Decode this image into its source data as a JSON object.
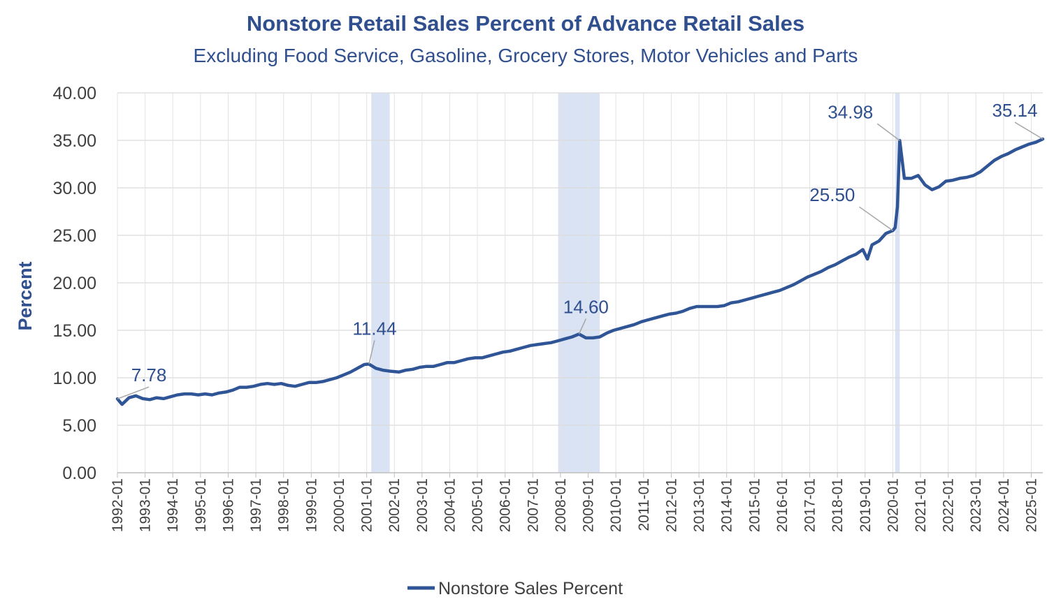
{
  "chart_data": {
    "type": "line",
    "title": "Nonstore Retail Sales Percent of Advance Retail Sales",
    "subtitle": "Excluding Food Service, Gasoline, Grocery Stores, Motor Vehicles and Parts",
    "xlabel": "",
    "ylabel": "Percent",
    "ylim": [
      0,
      40
    ],
    "yticks": [
      "0.00",
      "5.00",
      "10.00",
      "15.00",
      "20.00",
      "25.00",
      "30.00",
      "35.00",
      "40.00"
    ],
    "xticks": [
      "1992-01",
      "1993-01",
      "1994-01",
      "1995-01",
      "1996-01",
      "1997-01",
      "1998-01",
      "1999-01",
      "2000-01",
      "2001-01",
      "2002-01",
      "2003-01",
      "2004-01",
      "2005-01",
      "2006-01",
      "2007-01",
      "2008-01",
      "2009-01",
      "2010-01",
      "2011-01",
      "2012-01",
      "2013-01",
      "2014-01",
      "2015-01",
      "2016-01",
      "2017-01",
      "2018-01",
      "2019-01",
      "2020-01",
      "2021-01",
      "2022-01",
      "2023-01",
      "2024-01",
      "2025-01"
    ],
    "grid": "vertical and horizontal",
    "legend_position": "bottom",
    "recession_shading": [
      {
        "start": "2001-03",
        "end": "2001-11"
      },
      {
        "start": "2007-12",
        "end": "2009-06"
      },
      {
        "start": "2020-02",
        "end": "2020-04"
      }
    ],
    "series": [
      {
        "name": "Nonstore Sales Percent",
        "color": "#2f5597",
        "points": [
          [
            "1992-01",
            7.78
          ],
          [
            "1992-03",
            7.2
          ],
          [
            "1992-06",
            7.9
          ],
          [
            "1992-09",
            8.1
          ],
          [
            "1992-12",
            7.8
          ],
          [
            "1993-03",
            7.7
          ],
          [
            "1993-06",
            7.9
          ],
          [
            "1993-09",
            7.8
          ],
          [
            "1993-12",
            8.0
          ],
          [
            "1994-03",
            8.2
          ],
          [
            "1994-06",
            8.3
          ],
          [
            "1994-09",
            8.3
          ],
          [
            "1994-12",
            8.2
          ],
          [
            "1995-03",
            8.3
          ],
          [
            "1995-06",
            8.2
          ],
          [
            "1995-09",
            8.4
          ],
          [
            "1995-12",
            8.5
          ],
          [
            "1996-03",
            8.7
          ],
          [
            "1996-06",
            9.0
          ],
          [
            "1996-09",
            9.0
          ],
          [
            "1996-12",
            9.1
          ],
          [
            "1997-03",
            9.3
          ],
          [
            "1997-06",
            9.4
          ],
          [
            "1997-09",
            9.3
          ],
          [
            "1997-12",
            9.4
          ],
          [
            "1998-03",
            9.2
          ],
          [
            "1998-06",
            9.1
          ],
          [
            "1998-09",
            9.3
          ],
          [
            "1998-12",
            9.5
          ],
          [
            "1999-03",
            9.5
          ],
          [
            "1999-06",
            9.6
          ],
          [
            "1999-09",
            9.8
          ],
          [
            "1999-12",
            10.0
          ],
          [
            "2000-03",
            10.3
          ],
          [
            "2000-06",
            10.6
          ],
          [
            "2000-09",
            11.0
          ],
          [
            "2000-12",
            11.4
          ],
          [
            "2001-02",
            11.44
          ],
          [
            "2001-05",
            11.0
          ],
          [
            "2001-08",
            10.8
          ],
          [
            "2001-11",
            10.7
          ],
          [
            "2002-03",
            10.6
          ],
          [
            "2002-06",
            10.8
          ],
          [
            "2002-09",
            10.9
          ],
          [
            "2002-12",
            11.1
          ],
          [
            "2003-03",
            11.2
          ],
          [
            "2003-06",
            11.2
          ],
          [
            "2003-09",
            11.4
          ],
          [
            "2003-12",
            11.6
          ],
          [
            "2004-03",
            11.6
          ],
          [
            "2004-06",
            11.8
          ],
          [
            "2004-09",
            12.0
          ],
          [
            "2004-12",
            12.1
          ],
          [
            "2005-03",
            12.1
          ],
          [
            "2005-06",
            12.3
          ],
          [
            "2005-09",
            12.5
          ],
          [
            "2005-12",
            12.7
          ],
          [
            "2006-03",
            12.8
          ],
          [
            "2006-06",
            13.0
          ],
          [
            "2006-09",
            13.2
          ],
          [
            "2006-12",
            13.4
          ],
          [
            "2007-03",
            13.5
          ],
          [
            "2007-06",
            13.6
          ],
          [
            "2007-09",
            13.7
          ],
          [
            "2007-12",
            13.9
          ],
          [
            "2008-03",
            14.1
          ],
          [
            "2008-06",
            14.3
          ],
          [
            "2008-09",
            14.6
          ],
          [
            "2008-12",
            14.2
          ],
          [
            "2009-03",
            14.2
          ],
          [
            "2009-06",
            14.3
          ],
          [
            "2009-09",
            14.7
          ],
          [
            "2009-12",
            15.0
          ],
          [
            "2010-03",
            15.2
          ],
          [
            "2010-06",
            15.4
          ],
          [
            "2010-09",
            15.6
          ],
          [
            "2010-12",
            15.9
          ],
          [
            "2011-03",
            16.1
          ],
          [
            "2011-06",
            16.3
          ],
          [
            "2011-09",
            16.5
          ],
          [
            "2011-12",
            16.7
          ],
          [
            "2012-03",
            16.8
          ],
          [
            "2012-06",
            17.0
          ],
          [
            "2012-09",
            17.3
          ],
          [
            "2012-12",
            17.5
          ],
          [
            "2013-03",
            17.5
          ],
          [
            "2013-06",
            17.5
          ],
          [
            "2013-09",
            17.5
          ],
          [
            "2013-12",
            17.6
          ],
          [
            "2014-03",
            17.9
          ],
          [
            "2014-06",
            18.0
          ],
          [
            "2014-09",
            18.2
          ],
          [
            "2014-12",
            18.4
          ],
          [
            "2015-03",
            18.6
          ],
          [
            "2015-06",
            18.8
          ],
          [
            "2015-09",
            19.0
          ],
          [
            "2015-12",
            19.2
          ],
          [
            "2016-03",
            19.5
          ],
          [
            "2016-06",
            19.8
          ],
          [
            "2016-09",
            20.2
          ],
          [
            "2016-12",
            20.6
          ],
          [
            "2017-03",
            20.9
          ],
          [
            "2017-06",
            21.2
          ],
          [
            "2017-09",
            21.6
          ],
          [
            "2017-12",
            21.9
          ],
          [
            "2018-03",
            22.3
          ],
          [
            "2018-06",
            22.7
          ],
          [
            "2018-09",
            23.0
          ],
          [
            "2018-12",
            23.5
          ],
          [
            "2019-02",
            22.5
          ],
          [
            "2019-04",
            24.0
          ],
          [
            "2019-07",
            24.4
          ],
          [
            "2019-10",
            25.2
          ],
          [
            "2020-01",
            25.5
          ],
          [
            "2020-02",
            25.8
          ],
          [
            "2020-03",
            28.0
          ],
          [
            "2020-04",
            34.98
          ],
          [
            "2020-05",
            33.0
          ],
          [
            "2020-06",
            31.0
          ],
          [
            "2020-09",
            31.0
          ],
          [
            "2020-12",
            31.3
          ],
          [
            "2021-03",
            30.3
          ],
          [
            "2021-06",
            29.8
          ],
          [
            "2021-09",
            30.1
          ],
          [
            "2021-12",
            30.7
          ],
          [
            "2022-03",
            30.8
          ],
          [
            "2022-06",
            31.0
          ],
          [
            "2022-09",
            31.1
          ],
          [
            "2022-12",
            31.3
          ],
          [
            "2023-03",
            31.7
          ],
          [
            "2023-06",
            32.3
          ],
          [
            "2023-09",
            32.9
          ],
          [
            "2023-12",
            33.3
          ],
          [
            "2024-03",
            33.6
          ],
          [
            "2024-06",
            34.0
          ],
          [
            "2024-09",
            34.3
          ],
          [
            "2024-12",
            34.6
          ],
          [
            "2025-03",
            34.8
          ],
          [
            "2025-06",
            35.14
          ]
        ]
      }
    ],
    "annotations": [
      {
        "text": "7.78",
        "x": "1992-01",
        "y": 7.78
      },
      {
        "text": "11.44",
        "x": "2001-02",
        "y": 11.44
      },
      {
        "text": "14.60",
        "x": "2008-09",
        "y": 14.6
      },
      {
        "text": "25.50",
        "x": "2020-01",
        "y": 25.5
      },
      {
        "text": "34.98",
        "x": "2020-04",
        "y": 34.98
      },
      {
        "text": "35.14",
        "x": "2025-06",
        "y": 35.14
      }
    ]
  }
}
